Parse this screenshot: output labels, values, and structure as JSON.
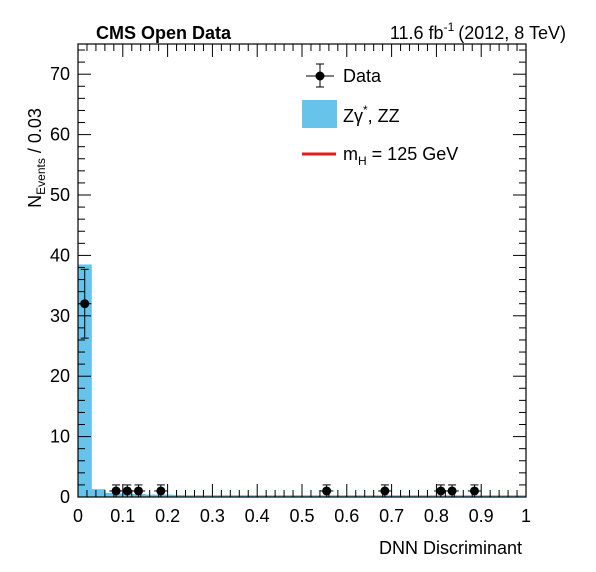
{
  "chart_data": {
    "type": "bar",
    "header": {
      "experiment": "CMS Open Data",
      "luminosity": "11.6 fb",
      "luminosity_exp": "-1",
      "conditions": "(2012, 8 TeV)"
    },
    "xlabel": "DNN Discriminant",
    "ylabel_main": "N",
    "ylabel_sub": "Events",
    "ylabel_tail": " / 0.03",
    "xlim": [
      0,
      1
    ],
    "ylim": [
      0,
      75
    ],
    "x_major_ticks": [
      0,
      0.1,
      0.2,
      0.3,
      0.4,
      0.5,
      0.6,
      0.7,
      0.8,
      0.9,
      1
    ],
    "x_tick_labels": [
      "0",
      "0.1",
      "0.2",
      "0.3",
      "0.4",
      "0.5",
      "0.6",
      "0.7",
      "0.8",
      "0.9",
      "1"
    ],
    "y_major_ticks": [
      0,
      10,
      20,
      30,
      40,
      50,
      60,
      70
    ],
    "y_tick_labels": [
      "0",
      "10",
      "20",
      "30",
      "40",
      "50",
      "60",
      "70"
    ],
    "bin_width": 0.03,
    "background": {
      "name": "Zγ*, ZZ",
      "name_main": "Zγ",
      "name_sup": "*",
      "name_tail": ", ZZ",
      "color": "#67c3ea",
      "bin_edges": [
        0,
        0.03,
        0.06,
        0.09,
        0.12,
        0.15,
        0.18,
        0.21,
        0.24,
        0.27,
        0.3,
        0.33,
        0.36,
        0.39,
        0.42,
        0.45,
        0.48,
        0.51,
        0.54,
        0.57,
        0.6,
        0.63,
        0.66,
        0.69,
        0.72,
        0.75,
        0.78,
        0.81,
        0.84,
        0.87,
        0.9,
        0.93,
        0.96,
        0.99,
        1.0
      ],
      "values": [
        38.5,
        1.3,
        0.7,
        0.6,
        0.5,
        0.4,
        0.4,
        0.35,
        0.3,
        0.3,
        0.3,
        0.3,
        0.3,
        0.3,
        0.3,
        0.3,
        0.3,
        0.3,
        0.3,
        0.3,
        0.3,
        0.3,
        0.3,
        0.3,
        0.3,
        0.3,
        0.3,
        0.3,
        0.3,
        0.3,
        0.3,
        0.3,
        0.3,
        0.3
      ]
    },
    "signal": {
      "name_main": "m",
      "name_sub": "H",
      "name_tail": " = 125 GeV",
      "color": "#e41a1c",
      "values": []
    },
    "data": {
      "name": "Data",
      "color": "#000000",
      "points": [
        {
          "x": 0.015,
          "y": 32,
          "err": 5.7
        },
        {
          "x": 0.085,
          "y": 1,
          "err": 1
        },
        {
          "x": 0.11,
          "y": 1,
          "err": 1
        },
        {
          "x": 0.135,
          "y": 1,
          "err": 1
        },
        {
          "x": 0.185,
          "y": 1,
          "err": 1
        },
        {
          "x": 0.555,
          "y": 1,
          "err": 1
        },
        {
          "x": 0.685,
          "y": 1,
          "err": 1
        },
        {
          "x": 0.81,
          "y": 1,
          "err": 1
        },
        {
          "x": 0.835,
          "y": 1,
          "err": 1
        },
        {
          "x": 0.885,
          "y": 1,
          "err": 1
        }
      ]
    },
    "legend_position": "top-right",
    "grid": false
  }
}
